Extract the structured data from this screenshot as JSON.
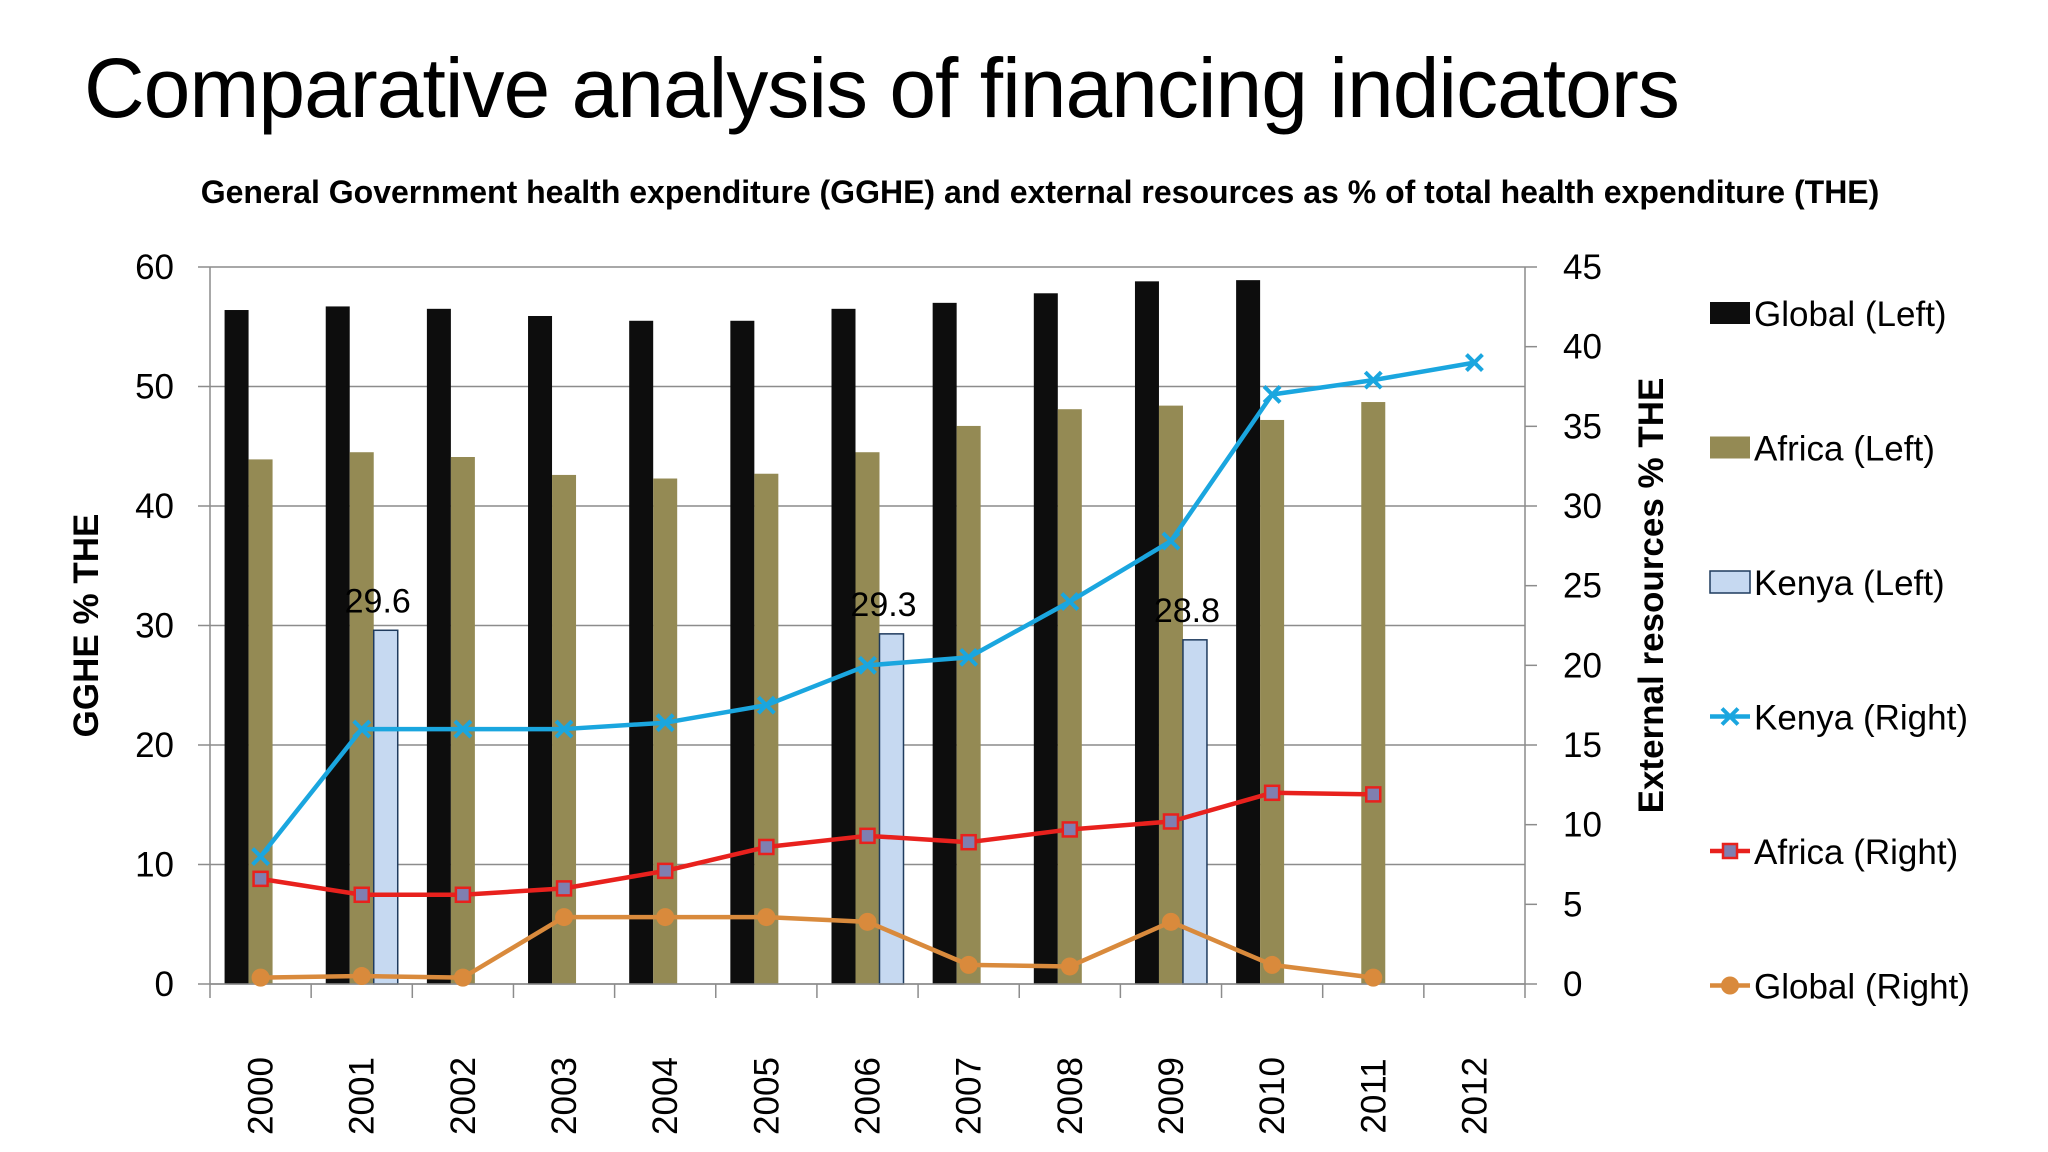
{
  "slide": {
    "title": "Comparative analysis of financing indicators"
  },
  "chart_data": {
    "type": "bar",
    "title": "General Government health expenditure (GGHE) and external resources as % of total health expenditure (THE)",
    "categories": [
      "2000",
      "2001",
      "2002",
      "2003",
      "2004",
      "2005",
      "2006",
      "2007",
      "2008",
      "2009",
      "2010",
      "2011",
      "2012"
    ],
    "y_left": {
      "label": "GGHE % THE",
      "range": [
        0,
        60
      ],
      "ticks": [
        0,
        10,
        20,
        30,
        40,
        50,
        60
      ]
    },
    "y_right": {
      "label": "External resources % THE",
      "range": [
        0,
        45
      ],
      "ticks": [
        0,
        5,
        10,
        15,
        20,
        25,
        30,
        35,
        40,
        45
      ]
    },
    "grid": true,
    "legend_position": "right",
    "bar_series": [
      {
        "name": "Global (Left)",
        "axis": "left",
        "color": "#0d0d0d",
        "values": [
          56.4,
          56.7,
          56.5,
          55.9,
          55.5,
          55.5,
          56.5,
          57.0,
          57.8,
          58.8,
          58.9,
          null,
          null
        ]
      },
      {
        "name": "Africa (Left)",
        "axis": "left",
        "color": "#948a54",
        "values": [
          43.9,
          44.5,
          44.1,
          42.6,
          42.3,
          42.7,
          44.5,
          46.7,
          48.1,
          48.4,
          47.2,
          48.7,
          null
        ]
      },
      {
        "name": "Kenya (Left)",
        "axis": "left",
        "color": "#c6d9f1",
        "values": [
          null,
          29.6,
          null,
          null,
          null,
          null,
          29.3,
          null,
          null,
          28.8,
          null,
          null,
          null
        ],
        "data_labels": [
          "",
          "29.6",
          "",
          "",
          "",
          "",
          "29.3",
          "",
          "",
          "28.8",
          "",
          "",
          ""
        ]
      }
    ],
    "line_series": [
      {
        "name": "Kenya (Right)",
        "axis": "right",
        "color": "#1aa6df",
        "marker": "x",
        "values": [
          8.0,
          16.0,
          16.0,
          16.0,
          16.4,
          17.5,
          20.0,
          20.5,
          24.0,
          27.8,
          37.0,
          37.9,
          39.0
        ]
      },
      {
        "name": "Africa (Right)",
        "axis": "right",
        "color": "#e8211d",
        "marker": "square",
        "values": [
          6.6,
          5.6,
          5.6,
          6.0,
          7.1,
          8.6,
          9.3,
          8.9,
          9.7,
          10.2,
          12.0,
          11.9,
          null
        ]
      },
      {
        "name": "Global (Right)",
        "axis": "right",
        "color": "#d98a3c",
        "marker": "circle",
        "values": [
          0.4,
          0.5,
          0.4,
          4.2,
          4.2,
          4.2,
          3.9,
          1.2,
          1.1,
          3.9,
          1.2,
          0.4,
          null
        ]
      }
    ]
  }
}
